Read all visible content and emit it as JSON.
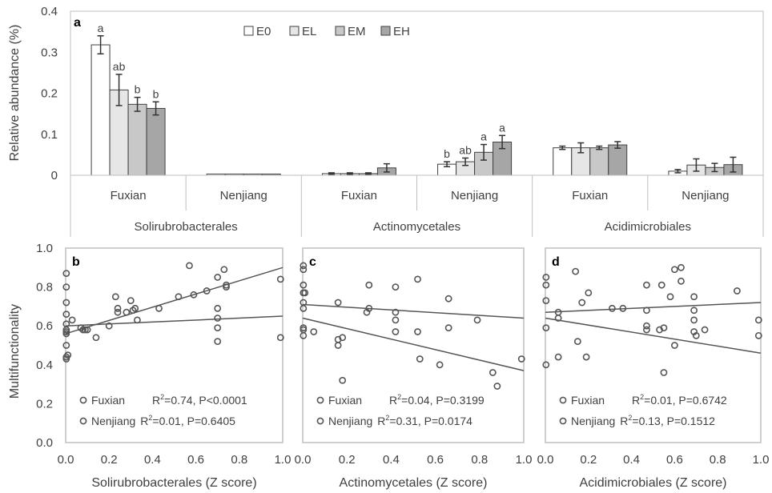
{
  "chart_data": [
    {
      "panel": "a",
      "type": "bar",
      "ylabel": "Relative abundance (%)",
      "ylim": [
        0,
        0.4
      ],
      "yticks": [
        "0",
        "0.1",
        "0.2",
        "0.3",
        "0.4"
      ],
      "legend": [
        "E0",
        "EL",
        "EM",
        "EH"
      ],
      "legend_position": "top-center",
      "series_colors": [
        "#ffffff",
        "#e6e6e6",
        "#c8c8c8",
        "#a6a6a6"
      ],
      "groups": [
        {
          "order": "Solirubrobacterales",
          "sites": [
            {
              "site": "Fuxian",
              "values": [
                0.318,
                0.208,
                0.173,
                0.163
              ],
              "errors": [
                0.022,
                0.038,
                0.017,
                0.016
              ],
              "letters": [
                "a",
                "ab",
                "b",
                "b"
              ]
            },
            {
              "site": "Nenjiang",
              "values": [
                0.003,
                0.003,
                0.003,
                0.003
              ],
              "errors": [
                0,
                0,
                0,
                0
              ],
              "letters": [
                "",
                "",
                "",
                ""
              ]
            }
          ]
        },
        {
          "order": "Actinomycetales",
          "sites": [
            {
              "site": "Fuxian",
              "values": [
                0.004,
                0.004,
                0.004,
                0.018
              ],
              "errors": [
                0.002,
                0.002,
                0.002,
                0.01
              ],
              "letters": [
                "",
                "",
                "",
                ""
              ]
            },
            {
              "site": "Nenjiang",
              "values": [
                0.027,
                0.033,
                0.056,
                0.081
              ],
              "errors": [
                0.006,
                0.009,
                0.019,
                0.016
              ],
              "letters": [
                "b",
                "ab",
                "a",
                "a"
              ]
            }
          ]
        },
        {
          "order": "Acidimicrobiales",
          "sites": [
            {
              "site": "Fuxian",
              "values": [
                0.067,
                0.067,
                0.067,
                0.074
              ],
              "errors": [
                0.004,
                0.012,
                0.004,
                0.008
              ],
              "letters": [
                "",
                "",
                "",
                ""
              ]
            },
            {
              "site": "Nenjiang",
              "values": [
                0.01,
                0.025,
                0.019,
                0.026
              ],
              "errors": [
                0.004,
                0.015,
                0.01,
                0.018
              ],
              "letters": [
                "",
                "",
                "",
                ""
              ]
            }
          ]
        }
      ]
    },
    {
      "panel": "b",
      "type": "scatter",
      "xlabel": "Solirubrobacterales (Z score)",
      "ylabel": "Multifunctionality",
      "xlim": [
        0,
        1.0
      ],
      "ylim": [
        0,
        1.0
      ],
      "xticks": [
        "0.0",
        "0.2",
        "0.4",
        "0.6",
        "0.8",
        "1.0"
      ],
      "yticks": [
        "0.0",
        "0.2",
        "0.4",
        "0.6",
        "0.8",
        "1.0"
      ],
      "series": [
        {
          "name": "Fuxian",
          "stat": "R2=0.74, P<0.0001",
          "fit": [
            0.56,
            0.9
          ],
          "points": [
            [
              0.003,
              0.87
            ],
            [
              0.003,
              0.8
            ],
            [
              0.003,
              0.72
            ],
            [
              0.003,
              0.66
            ],
            [
              0.003,
              0.61
            ],
            [
              0.003,
              0.58
            ],
            [
              0.003,
              0.5
            ],
            [
              0.003,
              0.44
            ],
            [
              0.03,
              0.63
            ],
            [
              0.07,
              0.59
            ],
            [
              0.2,
              0.6
            ],
            [
              0.23,
              0.75
            ],
            [
              0.24,
              0.69
            ],
            [
              0.24,
              0.67
            ],
            [
              0.28,
              0.67
            ],
            [
              0.3,
              0.73
            ],
            [
              0.31,
              0.68
            ],
            [
              0.32,
              0.69
            ],
            [
              0.43,
              0.69
            ],
            [
              0.52,
              0.75
            ],
            [
              0.57,
              0.91
            ],
            [
              0.59,
              0.76
            ],
            [
              0.65,
              0.78
            ],
            [
              0.7,
              0.85
            ],
            [
              0.73,
              0.89
            ],
            [
              0.74,
              0.81
            ],
            [
              0.74,
              0.8
            ],
            [
              0.99,
              0.84
            ]
          ]
        },
        {
          "name": "Nenjiang",
          "stat": "R2=0.01, P=0.6405",
          "fit": [
            0.6,
            0.65
          ],
          "points": [
            [
              0.003,
              0.57
            ],
            [
              0.003,
              0.56
            ],
            [
              0.003,
              0.43
            ],
            [
              0.01,
              0.45
            ],
            [
              0.08,
              0.58
            ],
            [
              0.09,
              0.58
            ],
            [
              0.1,
              0.58
            ],
            [
              0.14,
              0.54
            ],
            [
              0.33,
              0.63
            ],
            [
              0.7,
              0.69
            ],
            [
              0.7,
              0.64
            ],
            [
              0.7,
              0.59
            ],
            [
              0.7,
              0.52
            ],
            [
              0.99,
              0.54
            ]
          ]
        }
      ]
    },
    {
      "panel": "c",
      "type": "scatter",
      "xlabel": "Actinomycetales (Z score)",
      "xlim": [
        0,
        1.0
      ],
      "ylim": [
        0,
        1.0
      ],
      "xticks": [
        "0.0",
        "0.2",
        "0.4",
        "0.6",
        "0.8",
        "1.0"
      ],
      "series": [
        {
          "name": "Fuxian",
          "stat": "R2=0.04, P=0.3199",
          "fit": [
            0.71,
            0.64
          ],
          "points": [
            [
              0.003,
              0.91
            ],
            [
              0.003,
              0.89
            ],
            [
              0.003,
              0.81
            ],
            [
              0.003,
              0.77
            ],
            [
              0.003,
              0.72
            ],
            [
              0.003,
              0.69
            ],
            [
              0.01,
              0.77
            ],
            [
              0.16,
              0.72
            ],
            [
              0.29,
              0.67
            ],
            [
              0.3,
              0.81
            ],
            [
              0.3,
              0.69
            ],
            [
              0.42,
              0.8
            ],
            [
              0.42,
              0.67
            ],
            [
              0.52,
              0.84
            ],
            [
              0.66,
              0.74
            ],
            [
              0.79,
              0.63
            ]
          ]
        },
        {
          "name": "Nenjiang",
          "stat": "R2=0.31, P=0.0174",
          "fit": [
            0.64,
            0.37
          ],
          "points": [
            [
              0.003,
              0.59
            ],
            [
              0.003,
              0.58
            ],
            [
              0.003,
              0.55
            ],
            [
              0.05,
              0.57
            ],
            [
              0.16,
              0.53
            ],
            [
              0.16,
              0.5
            ],
            [
              0.18,
              0.54
            ],
            [
              0.18,
              0.32
            ],
            [
              0.42,
              0.63
            ],
            [
              0.42,
              0.57
            ],
            [
              0.52,
              0.57
            ],
            [
              0.53,
              0.43
            ],
            [
              0.62,
              0.4
            ],
            [
              0.66,
              0.59
            ],
            [
              0.86,
              0.36
            ],
            [
              0.88,
              0.29
            ],
            [
              0.99,
              0.43
            ]
          ]
        }
      ]
    },
    {
      "panel": "d",
      "type": "scatter",
      "xlabel": "Acidimicrobiales (Z score)",
      "xlim": [
        0,
        1.0
      ],
      "ylim": [
        0,
        1.0
      ],
      "xticks": [
        "0.0",
        "0.2",
        "0.4",
        "0.6",
        "0.8",
        "1.0"
      ],
      "series": [
        {
          "name": "Fuxian",
          "stat": "R2=0.01, P=0.6742",
          "fit": [
            0.67,
            0.72
          ],
          "points": [
            [
              0.003,
              0.85
            ],
            [
              0.003,
              0.81
            ],
            [
              0.003,
              0.73
            ],
            [
              0.003,
              0.59
            ],
            [
              0.06,
              0.67
            ],
            [
              0.14,
              0.88
            ],
            [
              0.17,
              0.72
            ],
            [
              0.2,
              0.77
            ],
            [
              0.31,
              0.69
            ],
            [
              0.36,
              0.69
            ],
            [
              0.47,
              0.81
            ],
            [
              0.47,
              0.68
            ],
            [
              0.54,
              0.81
            ],
            [
              0.58,
              0.75
            ],
            [
              0.6,
              0.89
            ],
            [
              0.63,
              0.9
            ],
            [
              0.63,
              0.83
            ],
            [
              0.69,
              0.68
            ],
            [
              0.69,
              0.75
            ],
            [
              0.89,
              0.78
            ],
            [
              0.99,
              0.63
            ]
          ]
        },
        {
          "name": "Nenjiang",
          "stat": "R2=0.13, P=0.1512",
          "fit": [
            0.64,
            0.46
          ],
          "points": [
            [
              0.003,
              0.4
            ],
            [
              0.06,
              0.64
            ],
            [
              0.06,
              0.44
            ],
            [
              0.15,
              0.52
            ],
            [
              0.19,
              0.44
            ],
            [
              0.47,
              0.6
            ],
            [
              0.47,
              0.58
            ],
            [
              0.53,
              0.58
            ],
            [
              0.55,
              0.59
            ],
            [
              0.55,
              0.36
            ],
            [
              0.6,
              0.5
            ],
            [
              0.69,
              0.63
            ],
            [
              0.69,
              0.57
            ],
            [
              0.7,
              0.55
            ],
            [
              0.74,
              0.58
            ],
            [
              0.99,
              0.55
            ]
          ]
        }
      ]
    }
  ]
}
